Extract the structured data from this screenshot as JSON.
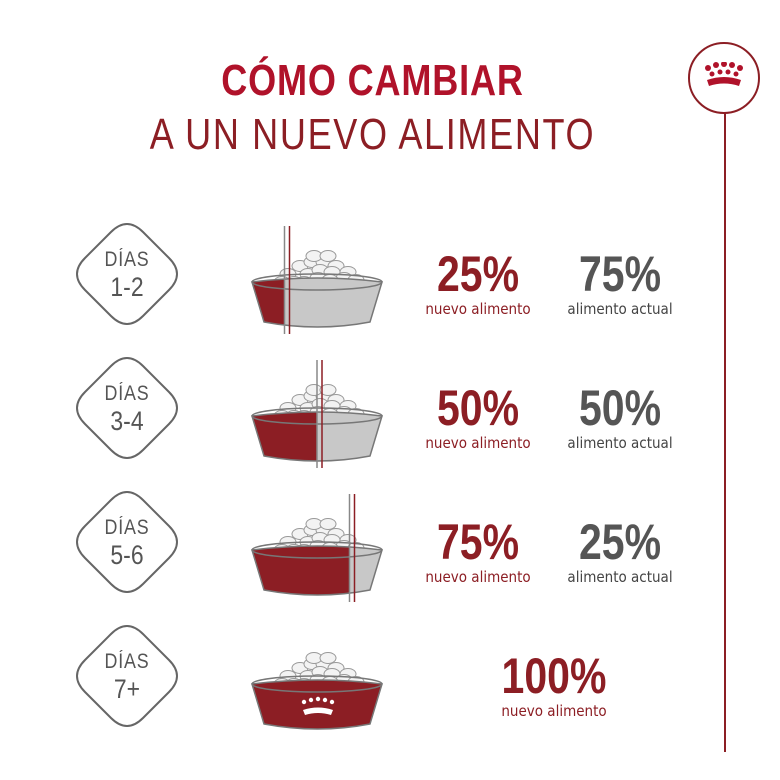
{
  "title": {
    "line1": "CÓMO CAMBIAR",
    "line2": "A UN NUEVO ALIMENTO"
  },
  "crest_icon": "crown-icon",
  "colors": {
    "brand_red": "#8c1e24",
    "accent_red": "#b0122a",
    "gray": "#555555"
  },
  "steps": [
    {
      "days_word": "DÍAS",
      "days_range": "1-2",
      "new_percent": "25%",
      "new_label": "nuevo alimento",
      "current_percent": "75%",
      "current_label": "alimento actual",
      "new_fraction": 0.25
    },
    {
      "days_word": "DÍAS",
      "days_range": "3-4",
      "new_percent": "50%",
      "new_label": "nuevo alimento",
      "current_percent": "50%",
      "current_label": "alimento actual",
      "new_fraction": 0.5
    },
    {
      "days_word": "DÍAS",
      "days_range": "5-6",
      "new_percent": "75%",
      "new_label": "nuevo alimento",
      "current_percent": "25%",
      "current_label": "alimento actual",
      "new_fraction": 0.75
    },
    {
      "days_word": "DÍAS",
      "days_range": "7+",
      "new_percent": "100%",
      "new_label": "nuevo alimento",
      "new_fraction": 1.0
    }
  ]
}
